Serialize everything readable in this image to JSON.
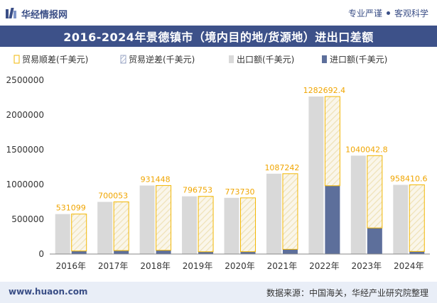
{
  "header": {
    "brand": "华经情报网",
    "tag1": "专业严谨",
    "tag2": "客观科学"
  },
  "chart_data": {
    "type": "bar",
    "title": "2016-2024年景德镇市（境内目的地/货源地）进出口差额",
    "categories": [
      "2016年",
      "2017年",
      "2018年",
      "2019年",
      "2020年",
      "2021年",
      "2022年",
      "2023年",
      "2024年"
    ],
    "series": [
      {
        "name": "贸易顺差(千美元)",
        "values": [
          531099,
          700053,
          931448,
          796753,
          773730,
          1087242,
          1282692.4,
          1040042.8,
          958410.6
        ],
        "color": "#f2b705"
      },
      {
        "name": "贸易逆差(千美元)",
        "values": [
          0,
          0,
          0,
          0,
          0,
          0,
          0,
          0,
          0
        ],
        "color": "#d9d9d9"
      },
      {
        "name": "出口额(千美元)",
        "values": [
          575000,
          750000,
          985000,
          830000,
          808000,
          1155000,
          2265000,
          1415000,
          995000
        ],
        "color": "#d9d9d9"
      },
      {
        "name": "进口额(千美元)",
        "values": [
          44000,
          50000,
          54000,
          33000,
          34000,
          68000,
          982000,
          375000,
          37000
        ],
        "color": "#5d6f9b"
      }
    ],
    "data_labels": [
      "531099",
      "700053",
      "931448",
      "796753",
      "773730",
      "1087242",
      "1282692.4",
      "1040042.8",
      "958410.6"
    ],
    "y_ticks": [
      "0",
      "500000",
      "1000000",
      "1500000",
      "2000000",
      "2500000"
    ],
    "ylim": [
      0,
      2500000
    ],
    "legend_position": "top-left",
    "grid": false
  },
  "footer": {
    "website": "www.huaon.com",
    "source": "数据来源：中国海关，华经产业研究院整理"
  }
}
